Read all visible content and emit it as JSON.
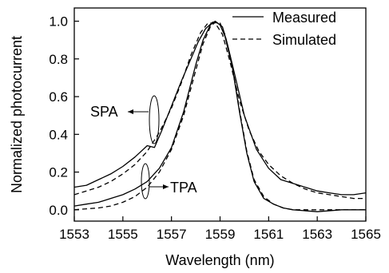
{
  "chart_data": {
    "type": "line",
    "title": "",
    "xlabel": "Wavelength (nm)",
    "ylabel": "Normalized photocurrent",
    "xlim": [
      1553,
      1565
    ],
    "ylim": [
      -0.06,
      1.07
    ],
    "xticks": [
      1553,
      1555,
      1557,
      1559,
      1561,
      1563,
      1565
    ],
    "xtick_labels": [
      "1553",
      "1555",
      "1557",
      "1559",
      "1561",
      "1563",
      "1565"
    ],
    "yticks": [
      0.0,
      0.2,
      0.4,
      0.6,
      0.8,
      1.0
    ],
    "ytick_labels": [
      "0.0",
      "0.2",
      "0.4",
      "0.6",
      "0.8",
      "1.0"
    ],
    "grid": false,
    "legend_position": "top-right",
    "legend": [
      {
        "label": "Measured",
        "style": "solid"
      },
      {
        "label": "Simulated",
        "style": "dashed"
      }
    ],
    "annotations": [
      {
        "text": "SPA",
        "arrow": "right"
      },
      {
        "text": "TPA",
        "arrow": "left"
      }
    ],
    "series": [
      {
        "group": "SPA",
        "style": "solid",
        "x": [
          1553.0,
          1553.5,
          1554.0,
          1554.5,
          1555.0,
          1555.5,
          1556.0,
          1556.3,
          1556.6,
          1557.0,
          1557.4,
          1557.8,
          1558.1,
          1558.4,
          1558.7,
          1558.9,
          1559.1,
          1559.3,
          1559.6,
          1560.0,
          1560.5,
          1561.0,
          1561.5,
          1562.0,
          1562.5,
          1563.0,
          1563.5,
          1564.0,
          1564.5,
          1565.0
        ],
        "y": [
          0.12,
          0.13,
          0.16,
          0.19,
          0.23,
          0.28,
          0.34,
          0.33,
          0.42,
          0.55,
          0.68,
          0.8,
          0.89,
          0.96,
          0.995,
          0.99,
          0.97,
          0.88,
          0.72,
          0.5,
          0.32,
          0.22,
          0.16,
          0.14,
          0.12,
          0.1,
          0.09,
          0.08,
          0.08,
          0.09
        ]
      },
      {
        "group": "SPA",
        "style": "dashed",
        "x": [
          1553.0,
          1553.5,
          1554.0,
          1554.5,
          1555.0,
          1555.5,
          1556.0,
          1556.5,
          1557.0,
          1557.4,
          1557.8,
          1558.2,
          1558.5,
          1558.8,
          1559.1,
          1559.4,
          1559.8,
          1560.2,
          1560.6,
          1561.0,
          1561.5,
          1562.0,
          1562.5,
          1563.0,
          1563.5,
          1564.0,
          1564.5,
          1565.0
        ],
        "y": [
          0.08,
          0.1,
          0.12,
          0.15,
          0.19,
          0.24,
          0.31,
          0.41,
          0.54,
          0.67,
          0.82,
          0.94,
          0.99,
          0.99,
          0.93,
          0.79,
          0.58,
          0.42,
          0.31,
          0.24,
          0.18,
          0.14,
          0.11,
          0.09,
          0.08,
          0.07,
          0.06,
          0.06
        ]
      },
      {
        "group": "TPA",
        "style": "solid",
        "x": [
          1553.0,
          1553.5,
          1554.0,
          1554.5,
          1555.0,
          1555.5,
          1556.0,
          1556.5,
          1557.0,
          1557.5,
          1558.0,
          1558.3,
          1558.6,
          1558.8,
          1559.0,
          1559.2,
          1559.5,
          1559.8,
          1560.1,
          1560.4,
          1560.8,
          1561.2,
          1561.6,
          1562.0,
          1563.0,
          1564.0,
          1565.0
        ],
        "y": [
          0.02,
          0.03,
          0.04,
          0.06,
          0.08,
          0.11,
          0.15,
          0.22,
          0.33,
          0.52,
          0.77,
          0.9,
          0.98,
          1.0,
          0.98,
          0.92,
          0.76,
          0.52,
          0.3,
          0.15,
          0.06,
          0.03,
          0.01,
          0.0,
          -0.01,
          0.0,
          0.0
        ]
      },
      {
        "group": "TPA",
        "style": "dashed",
        "x": [
          1553.0,
          1553.5,
          1554.0,
          1554.5,
          1555.0,
          1555.5,
          1556.0,
          1556.5,
          1557.0,
          1557.5,
          1558.0,
          1558.3,
          1558.6,
          1558.8,
          1559.0,
          1559.2,
          1559.5,
          1559.8,
          1560.1,
          1560.4,
          1560.8,
          1561.2,
          1561.6,
          1562.0,
          1563.0,
          1564.0,
          1565.0
        ],
        "y": [
          0.0,
          0.005,
          0.01,
          0.02,
          0.04,
          0.07,
          0.12,
          0.2,
          0.32,
          0.5,
          0.74,
          0.88,
          0.97,
          0.995,
          0.99,
          0.93,
          0.77,
          0.53,
          0.31,
          0.16,
          0.07,
          0.03,
          0.01,
          0.0,
          0.0,
          0.0,
          0.0
        ]
      }
    ]
  }
}
